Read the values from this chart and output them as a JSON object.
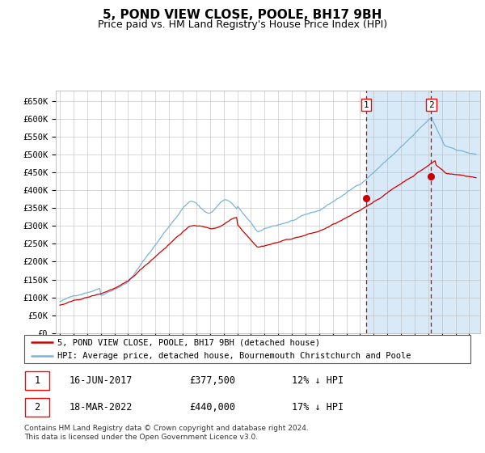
{
  "title": "5, POND VIEW CLOSE, POOLE, BH17 9BH",
  "subtitle": "Price paid vs. HM Land Registry's House Price Index (HPI)",
  "ylabel_ticks": [
    "£0",
    "£50K",
    "£100K",
    "£150K",
    "£200K",
    "£250K",
    "£300K",
    "£350K",
    "£400K",
    "£450K",
    "£500K",
    "£550K",
    "£600K",
    "£650K"
  ],
  "ylim": [
    0,
    680000
  ],
  "xlim_start": 1994.7,
  "xlim_end": 2025.8,
  "hpi_color": "#7ab4d8",
  "price_color": "#cc0000",
  "marker_color": "#cc0000",
  "vline_color": "#cc0000",
  "background_color": "#d8eaf7",
  "grid_color": "#bbbbbb",
  "legend_label_red": "5, POND VIEW CLOSE, POOLE, BH17 9BH (detached house)",
  "legend_label_blue": "HPI: Average price, detached house, Bournemouth Christchurch and Poole",
  "sale1_date": "16-JUN-2017",
  "sale1_price": "£377,500",
  "sale1_hpi": "12% ↓ HPI",
  "sale1_year": 2017.46,
  "sale1_value": 377500,
  "sale2_date": "18-MAR-2022",
  "sale2_price": "£440,000",
  "sale2_hpi": "17% ↓ HPI",
  "sale2_year": 2022.21,
  "sale2_value": 440000,
  "footnote": "Contains HM Land Registry data © Crown copyright and database right 2024.\nThis data is licensed under the Open Government Licence v3.0.",
  "title_fontsize": 11,
  "subtitle_fontsize": 9,
  "tick_fontsize": 7.5,
  "legend_fontsize": 8,
  "annotation_fontsize": 8
}
